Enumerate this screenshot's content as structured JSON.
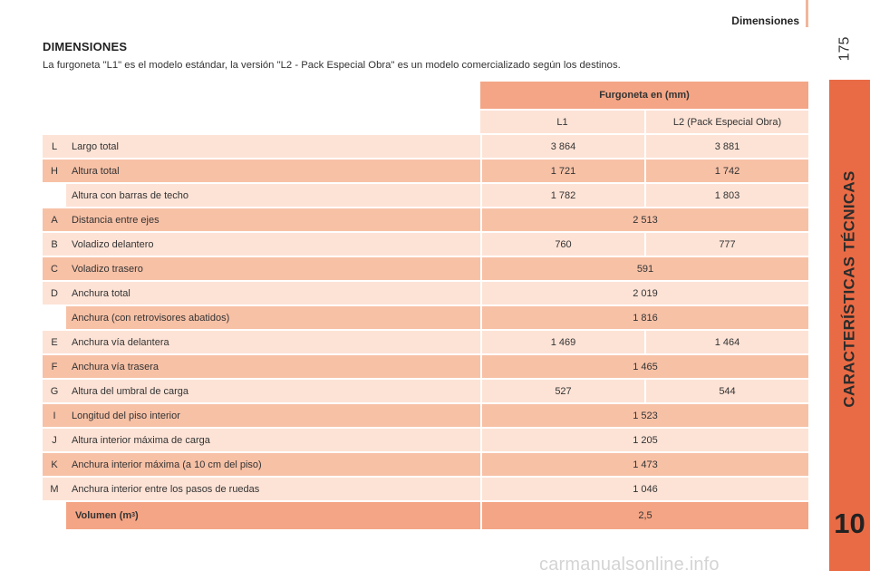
{
  "header": {
    "title": "Dimensiones",
    "page_number": "175"
  },
  "sidebar": {
    "section_label": "CARACTERÍSTICAS TÉCNICAS",
    "chapter_number": "10"
  },
  "section": {
    "title": "DIMENSIONES",
    "intro": "La furgoneta \"L1\" es el modelo estándar, la versión \"L2 - Pack Especial Obra\" es un modelo comercializado según los destinos."
  },
  "table": {
    "group_header": "Furgoneta en (mm)",
    "columns": [
      "L1",
      "L2 (Pack Especial Obra)"
    ],
    "rows": [
      {
        "letter": "L",
        "desc": "Largo total",
        "l1": "3 864",
        "l2": "3 881"
      },
      {
        "letter": "H",
        "desc": "Altura total",
        "l1": "1 721",
        "l2": "1 742"
      },
      {
        "letter": "",
        "desc": "Altura con barras de techo",
        "l1": "1 782",
        "l2": "1 803"
      },
      {
        "letter": "A",
        "desc": "Distancia entre ejes",
        "value": "2 513"
      },
      {
        "letter": "B",
        "desc": "Voladizo delantero",
        "l1": "760",
        "l2": "777"
      },
      {
        "letter": "C",
        "desc": "Voladizo trasero",
        "value": "591"
      },
      {
        "letter": "D",
        "desc": "Anchura total",
        "value": "2 019"
      },
      {
        "letter": "",
        "desc": "Anchura (con retrovisores abatidos)",
        "value": "1 816"
      },
      {
        "letter": "E",
        "desc": "Anchura vía delantera",
        "l1": "1 469",
        "l2": "1 464"
      },
      {
        "letter": "F",
        "desc": "Anchura vía trasera",
        "value": "1 465"
      },
      {
        "letter": "G",
        "desc": "Altura del umbral de carga",
        "l1": "527",
        "l2": "544"
      },
      {
        "letter": "I",
        "desc": "Longitud del piso interior",
        "value": "1 523"
      },
      {
        "letter": "J",
        "desc": "Altura interior máxima de carga",
        "value": "1 205"
      },
      {
        "letter": "K",
        "desc": "Anchura interior máxima (a 10 cm del piso)",
        "value": "1 473"
      },
      {
        "letter": "M",
        "desc": "Anchura interior entre los pasos de ruedas",
        "value": "1 046"
      }
    ],
    "volume": {
      "label": "Volumen (m",
      "unit_exp": "3",
      "label_close": ")",
      "value": "2,5"
    }
  },
  "watermark": "carmanualsonline.info"
}
